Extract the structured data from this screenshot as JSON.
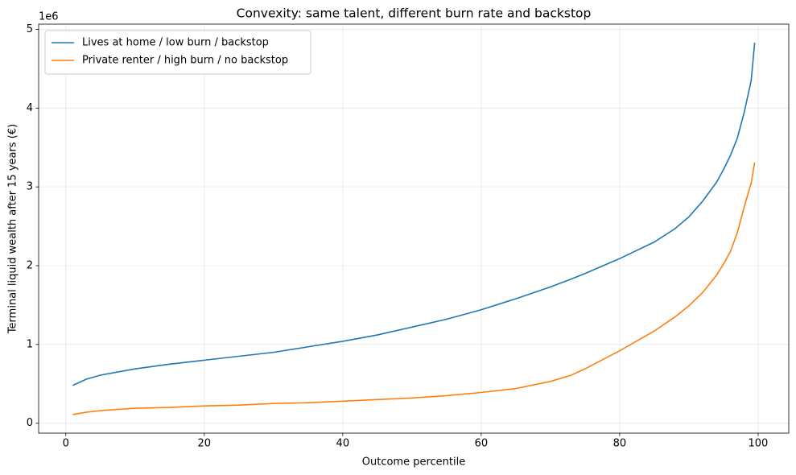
{
  "chart_data": {
    "type": "line",
    "title": "Convexity: same talent, different burn rate and backstop",
    "x_label": "Outcome percentile",
    "y_label": "Terminal liquid wealth after 15 years (€)",
    "y_offset_text": "1e6",
    "x": [
      1,
      3,
      5,
      10,
      15,
      20,
      25,
      30,
      35,
      40,
      45,
      50,
      55,
      60,
      65,
      70,
      73,
      75,
      80,
      85,
      88,
      90,
      92,
      94,
      95,
      96,
      97,
      98,
      99,
      99.5
    ],
    "series": [
      {
        "name": "Lives at home / low burn / backstop",
        "color": "#1f77b4",
        "values": [
          0.48,
          0.56,
          0.61,
          0.69,
          0.75,
          0.8,
          0.85,
          0.9,
          0.97,
          1.04,
          1.12,
          1.22,
          1.32,
          1.44,
          1.58,
          1.73,
          1.83,
          1.9,
          2.09,
          2.3,
          2.47,
          2.62,
          2.82,
          3.06,
          3.22,
          3.4,
          3.62,
          3.95,
          4.35,
          4.83
        ]
      },
      {
        "name": "Private renter / high burn / no backstop",
        "color": "#ff7f0e",
        "values": [
          0.11,
          0.14,
          0.16,
          0.19,
          0.2,
          0.22,
          0.23,
          0.25,
          0.26,
          0.28,
          0.3,
          0.32,
          0.35,
          0.39,
          0.44,
          0.53,
          0.61,
          0.69,
          0.92,
          1.17,
          1.35,
          1.49,
          1.66,
          1.88,
          2.02,
          2.18,
          2.42,
          2.75,
          3.05,
          3.31
        ]
      }
    ],
    "xlim": [
      -3.925,
      104.425
    ],
    "xticks": [
      0,
      20,
      40,
      60,
      80,
      100
    ],
    "ylim": [
      -0.126,
      5.066
    ],
    "yticks": [
      0,
      1,
      2,
      3,
      4,
      5
    ],
    "grid": true,
    "legend": "upper-left"
  }
}
